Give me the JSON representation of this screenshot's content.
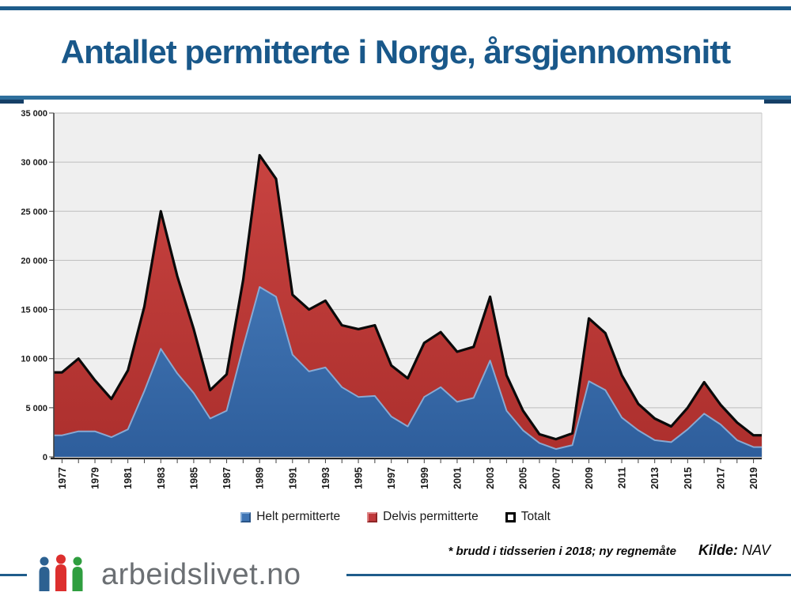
{
  "header": {
    "title": "Antallet permitterte i Norge, årsgjennomsnitt"
  },
  "chart_data": {
    "type": "area",
    "stacked": true,
    "title": "Antallet permitterte i Norge, årsgjennomsnitt",
    "years": [
      1977,
      1978,
      1979,
      1980,
      1981,
      1982,
      1983,
      1984,
      1985,
      1986,
      1987,
      1988,
      1989,
      1990,
      1991,
      1992,
      1993,
      1994,
      1995,
      1996,
      1997,
      1998,
      1999,
      2000,
      2001,
      2002,
      2003,
      2004,
      2005,
      2006,
      2007,
      2008,
      2009,
      2010,
      2011,
      2012,
      2013,
      2014,
      2015,
      2016,
      2017,
      2018,
      2019
    ],
    "series": [
      {
        "name": "Helt permitterte",
        "color": "#3E74B4",
        "values": [
          2200,
          2600,
          2600,
          2000,
          2800,
          6700,
          11000,
          8500,
          6500,
          3900,
          4700,
          11200,
          17300,
          16300,
          10400,
          8700,
          9100,
          7100,
          6100,
          6200,
          4100,
          3100,
          6100,
          7100,
          5600,
          6000,
          9800,
          4700,
          2700,
          1400,
          800,
          1200,
          7700,
          6800,
          4000,
          2700,
          1700,
          1500,
          2800,
          4400,
          3300,
          1700,
          1000
        ]
      },
      {
        "name": "Delvis permitterte",
        "color": "#C0393B",
        "values": [
          6400,
          7400,
          5200,
          3900,
          6000,
          8600,
          14000,
          9900,
          6500,
          2900,
          3700,
          6800,
          13400,
          12000,
          6100,
          6300,
          6800,
          6300,
          6900,
          7200,
          5200,
          4900,
          5500,
          5600,
          5100,
          5200,
          6500,
          3600,
          2000,
          900,
          1000,
          1200,
          6400,
          5800,
          4300,
          2700,
          2200,
          1600,
          2200,
          3200,
          2000,
          1800,
          1200
        ]
      },
      {
        "name": "Totalt",
        "color": "#000000",
        "render": "line",
        "values": [
          8600,
          10000,
          7800,
          5900,
          8800,
          15300,
          25000,
          18400,
          13000,
          6800,
          8400,
          18000,
          30700,
          28300,
          16500,
          15000,
          15900,
          13400,
          13000,
          13400,
          9300,
          8000,
          11600,
          12700,
          10700,
          11200,
          16300,
          8300,
          4700,
          2300,
          1800,
          2400,
          14100,
          12600,
          8300,
          5400,
          3900,
          3100,
          5000,
          7600,
          5300,
          3500,
          2200
        ]
      }
    ],
    "ylim": [
      0,
      35000
    ],
    "ytick_interval": 5000,
    "ytick_labels": [
      "0",
      "5 000",
      "10 000",
      "15 000",
      "20 000",
      "25 000",
      "30 000",
      "35 000"
    ],
    "xtick_labels": [
      "1977",
      "1979",
      "1981",
      "1983",
      "1985",
      "1987",
      "1989",
      "1991",
      "1993",
      "1995",
      "1997",
      "1999",
      "2001",
      "2003",
      "2005",
      "2007",
      "2009",
      "2011",
      "2013",
      "2015",
      "2017",
      "2019"
    ],
    "grid": true,
    "legend_position": "bottom",
    "plot_bg": "#EFEFEF",
    "gridline_color": "#BDBDBD"
  },
  "legend": {
    "helt_label": "Helt permitterte",
    "delvis_label": "Delvis permitterte",
    "totalt_label": "Totalt"
  },
  "footnote": {
    "asterisk_note": "* brudd i tidsserien i 2018; ny regnemåte",
    "source_label": "Kilde:",
    "source_value": "NAV"
  },
  "footer": {
    "logo_text": "arbeidslivet.no"
  },
  "colors": {
    "title_blue": "#19588A",
    "line_blue": "#1F5C8B",
    "area_blue_top": "#5289C8",
    "area_blue_bottom": "#2E5E9C",
    "area_red_top": "#CC4643",
    "area_red_bottom": "#AC2F2D",
    "total_line": "#0A0A0A",
    "logo_gray": "#6B6F73",
    "logo_person_blue": "#2C6191",
    "logo_person_red": "#DD2F2E",
    "logo_person_green": "#2F9E3F"
  }
}
